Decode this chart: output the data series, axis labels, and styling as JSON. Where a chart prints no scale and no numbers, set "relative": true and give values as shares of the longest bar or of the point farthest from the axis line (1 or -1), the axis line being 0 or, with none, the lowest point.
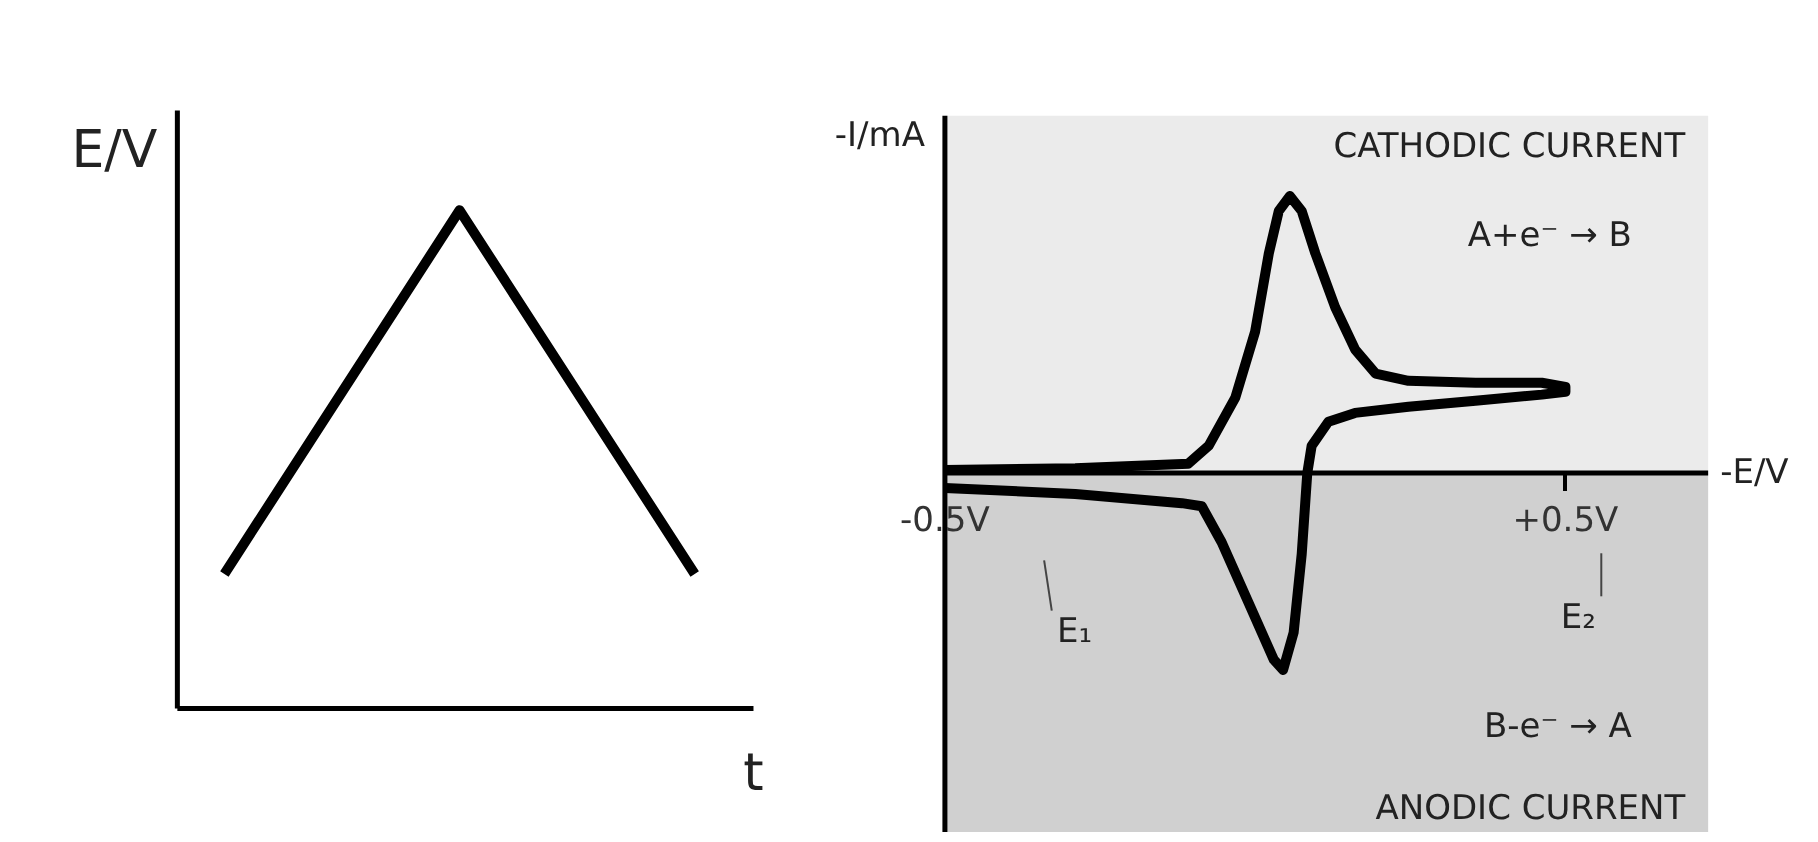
{
  "chart_data": [
    {
      "type": "line",
      "xlabel": "t",
      "ylabel": "E/V",
      "categories": [
        null,
        null,
        null
      ],
      "values": [
        0.27,
        1,
        0.27
      ],
      "color": "#000000",
      "relative": true,
      "tick_labels": false
    },
    {
      "type": "line",
      "xlabel": "-E/V",
      "ylabel": "-I/mA",
      "relative": true,
      "xlim": [
        -0.5,
        0.73
      ],
      "xticks": [
        {
          "value": -0.5,
          "label": "-0.5V"
        },
        {
          "value": 0.5,
          "label": "+0.5V"
        }
      ],
      "tick_labels": "x",
      "series": [
        {
          "color": "#000000",
          "x": [
            -0.5,
            -0.29,
            -0.108,
            -0.075,
            -0.032,
            0.0,
            0.022,
            0.038,
            0.056,
            0.075,
            0.097,
            0.129,
            0.161,
            0.194,
            0.247,
            0.355,
            0.462,
            0.5,
            0.5,
            0.462,
            0.355,
            0.247,
            0.161,
            0.118,
            0.091,
            0.084,
            0.075,
            0.062,
            0.045,
            0.03,
            -0.011,
            -0.054,
            -0.086,
            -0.118,
            -0.29,
            -0.5
          ],
          "values": [
            0.011,
            0.017,
            0.033,
            0.098,
            0.272,
            0.511,
            0.793,
            0.946,
            1.0,
            0.946,
            0.793,
            0.598,
            0.446,
            0.359,
            0.333,
            0.326,
            0.326,
            0.311,
            0.293,
            0.283,
            0.261,
            0.239,
            0.217,
            0.185,
            0.098,
            0.0,
            -0.293,
            -0.576,
            -0.711,
            -0.674,
            -0.467,
            -0.25,
            -0.12,
            -0.109,
            -0.076,
            -0.054
          ]
        }
      ],
      "bands": [
        {
          "axis": "y",
          "from": 0,
          "to": 1.29,
          "color": "#ebebeb"
        },
        {
          "axis": "y",
          "from": -1.3,
          "to": 0,
          "color": "#d0d0d0"
        }
      ],
      "annotations": [
        "CATHODIC CURRENT",
        "A+e⁻ → B",
        "E₁",
        "E₂",
        "B-e⁻ → A",
        "ANODIC CURRENT"
      ]
    }
  ]
}
